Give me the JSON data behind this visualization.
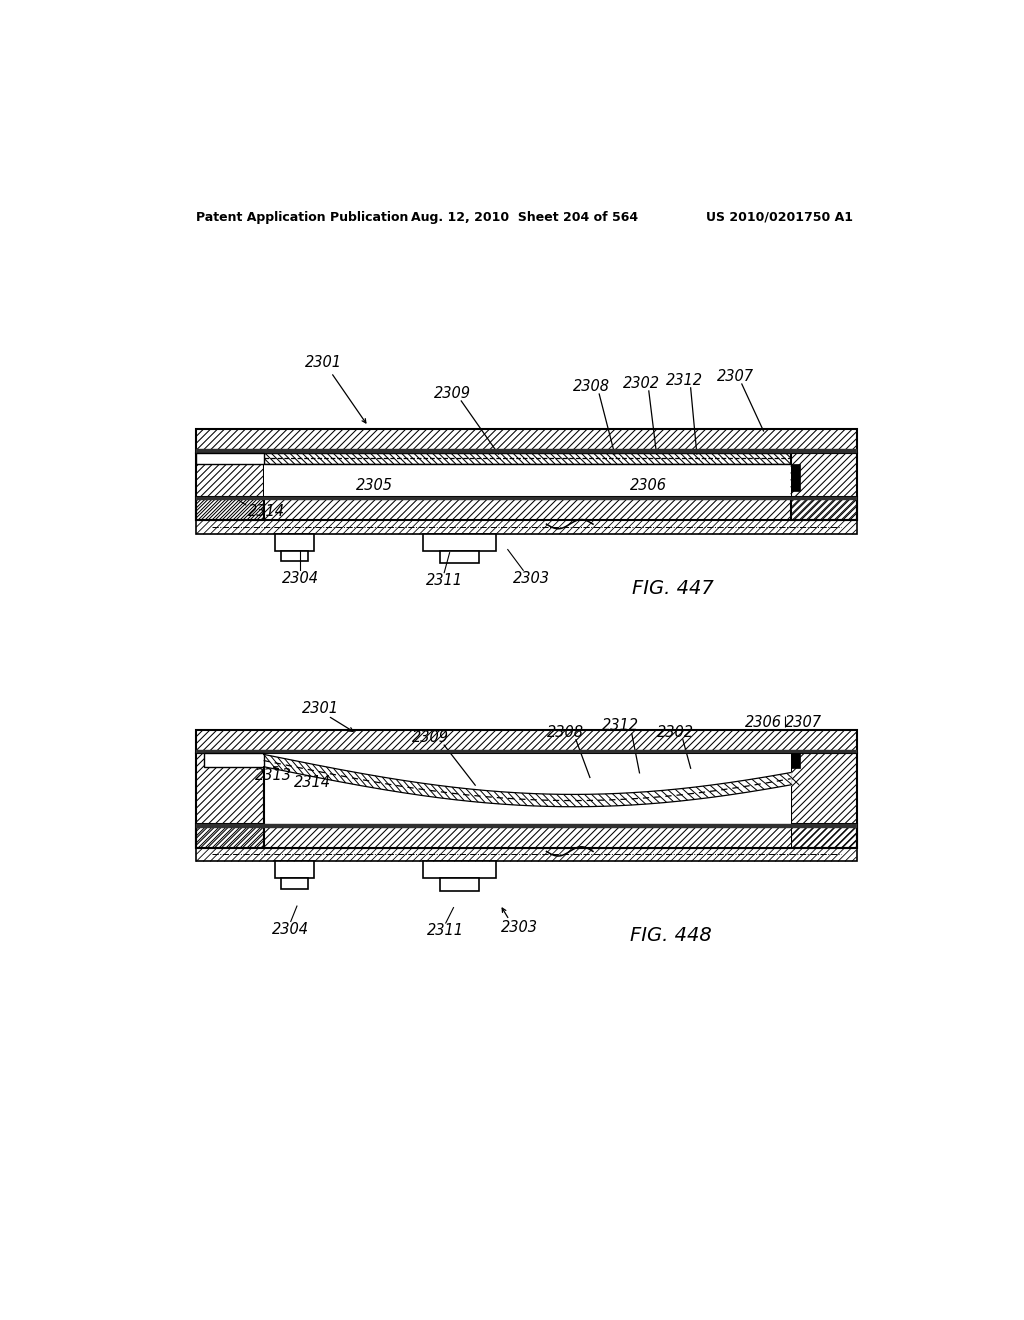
{
  "bg_color": "#ffffff",
  "header_left": "Patent Application Publication",
  "header_mid": "Aug. 12, 2010  Sheet 204 of 564",
  "header_right": "US 2010/0201750 A1",
  "fig1_label": "FIG. 447",
  "fig2_label": "FIG. 448",
  "lfs": 10.5,
  "hfs": 9.0,
  "fig_label_fs": 14
}
